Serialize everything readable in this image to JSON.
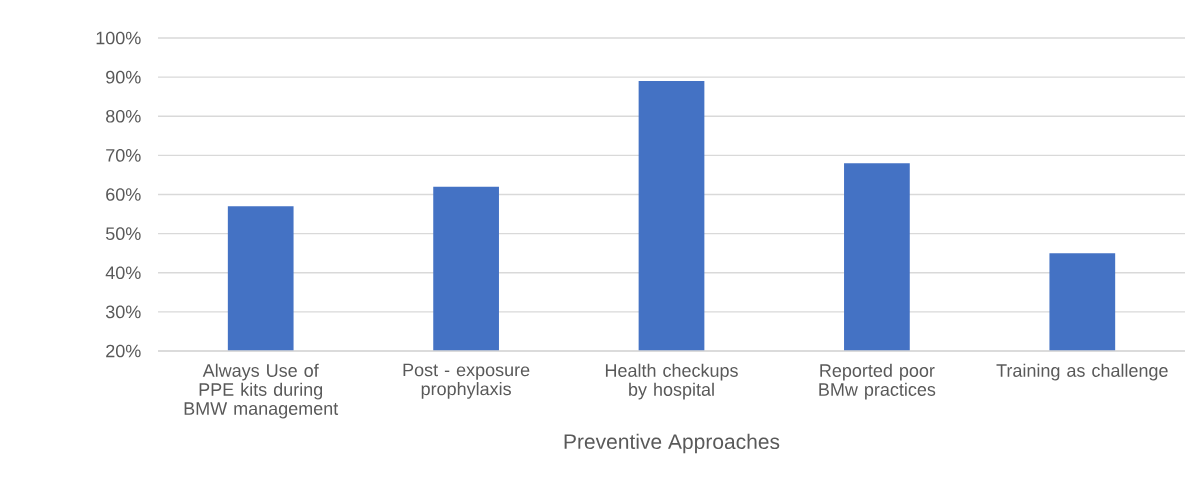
{
  "chart_data": {
    "type": "bar",
    "categories": [
      "Always Use of PPE kits during BMW management",
      "Post - exposure prophylaxis",
      "Health checkups by hospital",
      "Reported poor BMw practices",
      "Training as challenge"
    ],
    "values": [
      57,
      62,
      89,
      68,
      45
    ],
    "color": "#4472c4",
    "xlabel": "Preventive Approaches",
    "ylim": [
      20,
      100
    ],
    "yticks": [
      {
        "value": 20,
        "label": "20%"
      },
      {
        "value": 30,
        "label": "30%"
      },
      {
        "value": 40,
        "label": "40%"
      },
      {
        "value": 50,
        "label": "50%"
      },
      {
        "value": 60,
        "label": "60%"
      },
      {
        "value": 70,
        "label": "70%"
      },
      {
        "value": 80,
        "label": "80%"
      },
      {
        "value": 90,
        "label": "90%"
      },
      {
        "value": 100,
        "label": "100%"
      }
    ],
    "grid": "y"
  }
}
